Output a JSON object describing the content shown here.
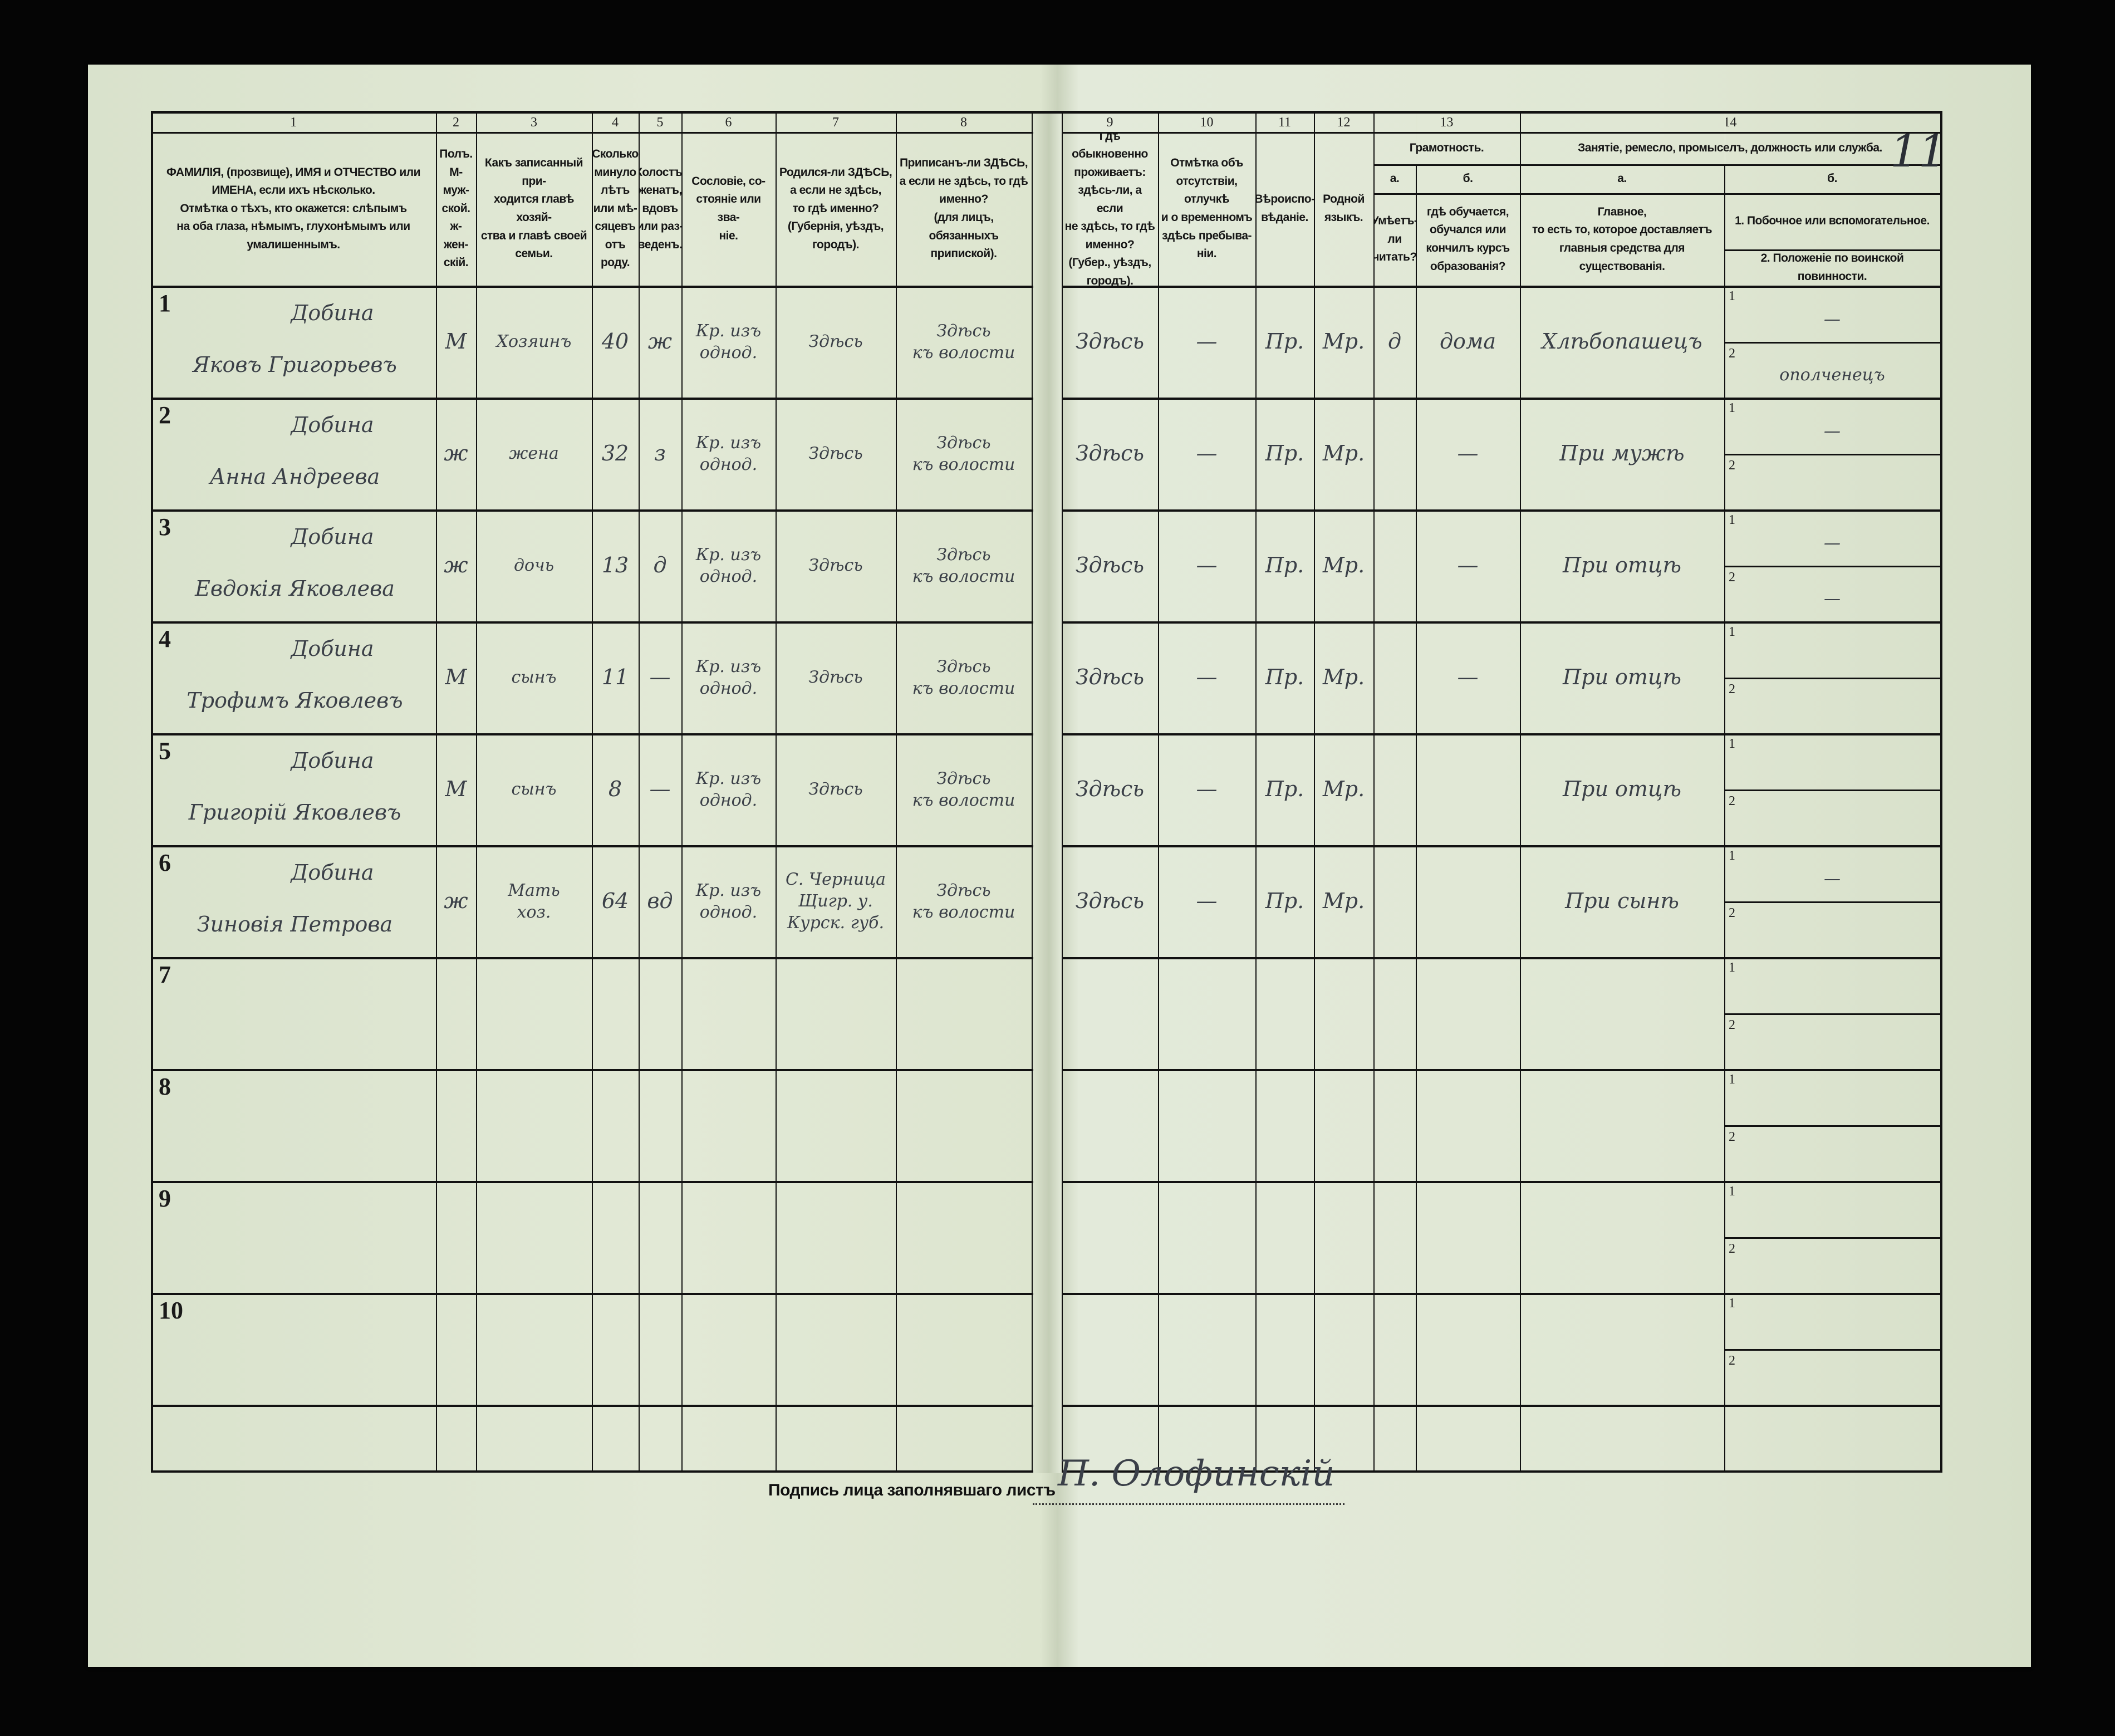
{
  "page_number": "11",
  "column_numbers": [
    "1",
    "2",
    "3",
    "4",
    "5",
    "6",
    "7",
    "8",
    "9",
    "10",
    "11",
    "12",
    "13",
    "14"
  ],
  "headers": {
    "c1": "ФАМИЛІЯ, (прозвище), ИМЯ и ОТЧЕСТВО или\nИМЕНА, если ихъ нѣсколько.\nОтмѣтка о тѣхъ, кто окажется: слѣпымъ\nна оба глаза, нѣмымъ, глухонѣмымъ или\nумалишеннымъ.",
    "c2": "Полъ.\nМ-муж-\nской.\nж-жен-\nскій.",
    "c3": "Какъ записанный при-\nходится главѣ хозяй-\nства и главѣ своей\nсемьи.",
    "c4": "Сколько\nминуло\nлѣтъ\nили мѣ-\nсяцевъ\nотъ роду.",
    "c5": "Холостъ,\nженатъ,\nвдовъ\nили раз-\nведенъ.",
    "c6": "Сословіе, со-\nстояніе или зва-\nніе.",
    "c7": "Родился-ли ЗДѢСЬ,\nа если не здѣсь,\nто гдѣ именно?\n(Губернія, уѣздъ, городъ).",
    "c8": "Приписанъ-ли ЗДѢСЬ,\nа если не здѣсь, то гдѣ\nименно?\n(для лицъ, обязанныхъ\nприпиской).",
    "c9": "Гдѣ обыкновенно\nпроживаетъ:\nздѣсь-ли, а если\nне здѣсь, то гдѣ\nименно?\n(Губер., уѣздъ, городъ).",
    "c10": "Отмѣтка объ\nотсутствіи, отлучкѣ\nи о временномъ\nздѣсь пребыва-\nніи.",
    "c11": "Вѣроиспо-\nвѣданіе.",
    "c12": "Родной\nязыкъ.",
    "c13": "Грамотность.",
    "c13a_letter": "а.",
    "c13b_letter": "б.",
    "c13a": "Умѣетъ-\nли\nчитать?",
    "c13b": "гдѣ обучается,\nобучался или\nкончилъ курсъ\nобразованія?",
    "c14": "Занятіе, ремесло, промыселъ, должность или служба.",
    "c14a_letter": "а.",
    "c14b_letter": "б.",
    "c14a": "Главное,\nто есть то, которое доставляетъ\nглавныя средства для существованія.",
    "c14b1": "1. Побочное или вспомогательное.",
    "c14b2": "2. Положеніе по воинской повинности."
  },
  "rows": [
    {
      "num": "1",
      "surname": "Добина",
      "name": "Яковъ Григорьевъ",
      "sex": "М",
      "relation": "Хозяинъ",
      "age": "40",
      "marital": "ж",
      "estate": "Кр. изъ\nоднод.",
      "born": "Здѣсь",
      "registered": "Здѣсь\nкъ волости",
      "residence": "Здѣсь",
      "absence": "—",
      "religion": "Пр.",
      "language": "Мр.",
      "literate": "д",
      "education": "дома",
      "occupation": "Хлѣбопашецъ",
      "secondary": "—",
      "military": "ополченецъ"
    },
    {
      "num": "2",
      "surname": "Добина",
      "name": "Анна Андреева",
      "sex": "ж",
      "relation": "жена",
      "age": "32",
      "marital": "з",
      "estate": "Кр. изъ\nоднод.",
      "born": "Здѣсь",
      "registered": "Здѣсь\nкъ волости",
      "residence": "Здѣсь",
      "absence": "—",
      "religion": "Пр.",
      "language": "Мр.",
      "literate": "",
      "education": "—",
      "occupation": "При мужѣ",
      "secondary": "—",
      "military": ""
    },
    {
      "num": "3",
      "surname": "Добина",
      "name": "Евдокія Яковлева",
      "sex": "ж",
      "relation": "дочь",
      "age": "13",
      "marital": "д",
      "estate": "Кр. изъ\nоднод.",
      "born": "Здѣсь",
      "registered": "Здѣсь\nкъ волости",
      "residence": "Здѣсь",
      "absence": "—",
      "religion": "Пр.",
      "language": "Мр.",
      "literate": "",
      "education": "—",
      "occupation": "При отцѣ",
      "secondary": "—",
      "military": "—"
    },
    {
      "num": "4",
      "surname": "Добина",
      "name": "Трофимъ Яковлевъ",
      "sex": "М",
      "relation": "сынъ",
      "age": "11",
      "marital": "—",
      "estate": "Кр. изъ\nоднод.",
      "born": "Здѣсь",
      "registered": "Здѣсь\nкъ волости",
      "residence": "Здѣсь",
      "absence": "—",
      "religion": "Пр.",
      "language": "Мр.",
      "literate": "",
      "education": "—",
      "occupation": "При отцѣ",
      "secondary": "",
      "military": ""
    },
    {
      "num": "5",
      "surname": "Добина",
      "name": "Григорій Яковлевъ",
      "sex": "М",
      "relation": "сынъ",
      "age": "8",
      "marital": "—",
      "estate": "Кр. изъ\nоднод.",
      "born": "Здѣсь",
      "registered": "Здѣсь\nкъ волости",
      "residence": "Здѣсь",
      "absence": "—",
      "religion": "Пр.",
      "language": "Мр.",
      "literate": "",
      "education": "",
      "occupation": "При отцѣ",
      "secondary": "",
      "military": ""
    },
    {
      "num": "6",
      "surname": "Добина",
      "name": "Зиновія Петрова",
      "sex": "ж",
      "relation": "Мать\nхоз.",
      "age": "64",
      "marital": "вд",
      "estate": "Кр. изъ\nоднод.",
      "born": "С. Черница\nЩигр. у.\nКурск. губ.",
      "registered": "Здѣсь\nкъ волости",
      "residence": "Здѣсь",
      "absence": "—",
      "religion": "Пр.",
      "language": "Мр.",
      "literate": "",
      "education": "",
      "occupation": "При сынѣ",
      "secondary": "—",
      "military": ""
    },
    {
      "num": "7"
    },
    {
      "num": "8"
    },
    {
      "num": "9"
    },
    {
      "num": "10"
    }
  ],
  "sub_labels": {
    "one": "1",
    "two": "2"
  },
  "signature": {
    "label": "Подпись лица заполнявшаго листъ",
    "value": "П. Олофинскій"
  }
}
